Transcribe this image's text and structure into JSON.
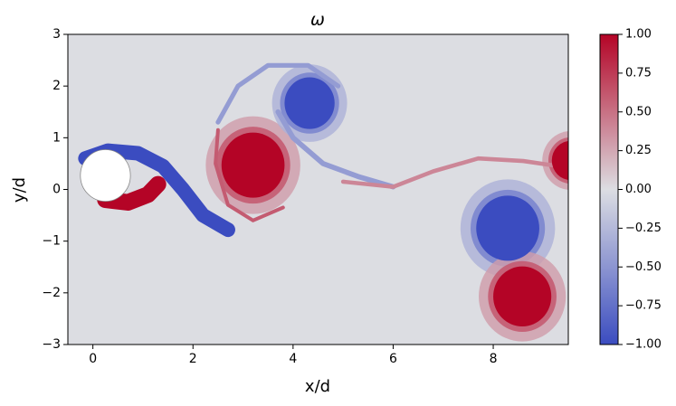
{
  "chart_data": {
    "type": "heatmap",
    "title": "ω",
    "xlabel": "x/d",
    "ylabel": "y/d",
    "xlim": [
      -0.5,
      9.5
    ],
    "ylim": [
      -3,
      3
    ],
    "xticks": [
      0,
      2,
      4,
      6,
      8
    ],
    "yticks": [
      {
        "value": -3,
        "label": "−3"
      },
      {
        "value": -2,
        "label": "−2"
      },
      {
        "value": -1,
        "label": "−1"
      },
      0,
      1,
      2,
      3
    ],
    "colormap": "coolwarm",
    "colors": [
      "#3b4cc0",
      "#dcdde2",
      "#b40426"
    ],
    "clim": [
      -1,
      1
    ],
    "cticks": [
      {
        "value": -1,
        "label": "−1.00"
      },
      {
        "value": -0.75,
        "label": "−0.75"
      },
      {
        "value": -0.5,
        "label": "−0.50"
      },
      {
        "value": -0.25,
        "label": "−0.25"
      },
      {
        "value": 0,
        "label": "0.00"
      },
      {
        "value": 0.25,
        "label": "0.25"
      },
      {
        "value": 0.5,
        "label": "0.50"
      },
      {
        "value": 0.75,
        "label": "0.75"
      },
      {
        "value": 1,
        "label": "1.00"
      }
    ],
    "vortices": [
      {
        "x": 3.2,
        "y": 0.47,
        "radius": 0.63,
        "value": 1
      },
      {
        "x": 4.33,
        "y": 1.67,
        "radius": 0.5,
        "value": -1
      },
      {
        "x": 8.29,
        "y": -0.75,
        "radius": 0.63,
        "value": -1
      },
      {
        "x": 8.58,
        "y": -2.07,
        "radius": 0.58,
        "value": 1
      },
      {
        "x": 9.55,
        "y": 0.56,
        "radius": 0.38,
        "value": 1
      }
    ],
    "filaments": [
      {
        "value": -1,
        "width": 0.28,
        "points": [
          [
            -0.15,
            0.6
          ],
          [
            0.3,
            0.75
          ],
          [
            0.9,
            0.7
          ],
          [
            1.4,
            0.45
          ],
          [
            1.8,
            0.0
          ],
          [
            2.2,
            -0.5
          ],
          [
            2.7,
            -0.78
          ]
        ]
      },
      {
        "value": 1,
        "width": 0.32,
        "points": [
          [
            0.25,
            -0.2
          ],
          [
            0.7,
            -0.25
          ],
          [
            1.1,
            -0.1
          ],
          [
            1.3,
            0.1
          ]
        ]
      },
      {
        "value": 0.6,
        "width": 0.07,
        "points": [
          [
            2.5,
            1.15
          ],
          [
            2.45,
            0.5
          ],
          [
            2.7,
            -0.3
          ],
          [
            3.2,
            -0.6
          ],
          [
            3.8,
            -0.35
          ]
        ]
      },
      {
        "value": -0.45,
        "width": 0.09,
        "points": [
          [
            2.5,
            1.3
          ],
          [
            2.9,
            2.0
          ],
          [
            3.5,
            2.4
          ],
          [
            4.3,
            2.4
          ],
          [
            4.9,
            2.0
          ]
        ]
      },
      {
        "value": -0.45,
        "width": 0.1,
        "points": [
          [
            3.7,
            1.5
          ],
          [
            4.0,
            1.0
          ],
          [
            4.6,
            0.5
          ],
          [
            5.3,
            0.25
          ],
          [
            6.0,
            0.05
          ]
        ]
      },
      {
        "value": 0.4,
        "width": 0.08,
        "points": [
          [
            5.0,
            0.15
          ],
          [
            6.0,
            0.05
          ],
          [
            6.8,
            0.35
          ],
          [
            7.7,
            0.6
          ],
          [
            8.6,
            0.55
          ],
          [
            9.3,
            0.45
          ]
        ]
      }
    ],
    "cylinder": {
      "x": 0.25,
      "y": 0.27,
      "radius": 0.5
    }
  }
}
